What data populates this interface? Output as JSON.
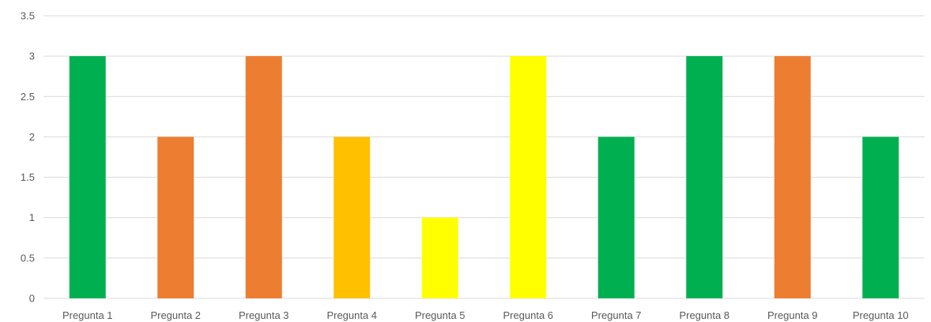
{
  "chart_data": {
    "type": "bar",
    "categories": [
      "Pregunta 1",
      "Pregunta 2",
      "Pregunta 3",
      "Pregunta 4",
      "Pregunta 5",
      "Pregunta 6",
      "Pregunta 7",
      "Pregunta 8",
      "Pregunta 9",
      "Pregunta 10"
    ],
    "values": [
      3,
      2,
      3,
      2,
      1,
      3,
      2,
      3,
      3,
      2
    ],
    "bar_colors": [
      "#00b050",
      "#ed7d31",
      "#ed7d31",
      "#ffc000",
      "#ffff00",
      "#ffff00",
      "#00b050",
      "#00b050",
      "#ed7d31",
      "#00b050"
    ],
    "ylim": [
      0,
      3.5
    ],
    "y_ticks": [
      "0",
      "0.5",
      "1",
      "1.5",
      "2",
      "2.5",
      "3",
      "3.5"
    ],
    "grid": true,
    "legend": "none"
  }
}
